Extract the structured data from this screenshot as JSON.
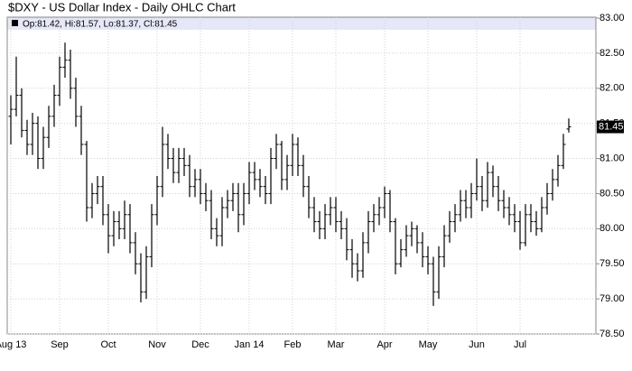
{
  "chart_data": {
    "type": "ohlc",
    "title": "$DXY - US Dollar Index - Daily OHLC Chart",
    "ohlc_text": "Op:81.42, Hi:81.57, Lo:81.37, Cl:81.45",
    "color": "#000000",
    "grid": true,
    "categories": [
      "Aug 13",
      null,
      null,
      null,
      null,
      null,
      null,
      null,
      null,
      "Sep",
      null,
      null,
      null,
      null,
      null,
      null,
      null,
      null,
      "Oct",
      null,
      null,
      null,
      null,
      null,
      null,
      null,
      null,
      "Nov",
      null,
      null,
      null,
      null,
      null,
      null,
      null,
      "Dec",
      null,
      null,
      null,
      null,
      null,
      null,
      null,
      null,
      "Jan 14",
      null,
      null,
      null,
      null,
      null,
      null,
      null,
      "Feb",
      null,
      null,
      null,
      null,
      null,
      null,
      null,
      "Mar",
      null,
      null,
      null,
      null,
      null,
      null,
      null,
      null,
      "Apr",
      null,
      null,
      null,
      null,
      null,
      null,
      null,
      "May",
      null,
      null,
      null,
      null,
      null,
      null,
      null,
      null,
      "Jun",
      null,
      null,
      null,
      null,
      null,
      null,
      null,
      "Jul",
      null,
      null,
      null,
      null,
      null,
      null,
      null,
      null,
      null
    ],
    "open": [
      81.6,
      81.7,
      81.9,
      81.4,
      81.2,
      81.5,
      81.0,
      81.3,
      81.6,
      81.9,
      82.3,
      82.4,
      82.0,
      81.6,
      81.2,
      80.3,
      80.5,
      80.6,
      80.2,
      79.9,
      80.1,
      80.0,
      80.2,
      79.8,
      79.5,
      79.1,
      79.6,
      80.2,
      80.6,
      81.2,
      81.0,
      80.8,
      81.0,
      80.9,
      80.6,
      80.7,
      80.5,
      80.4,
      80.0,
      79.9,
      80.3,
      80.4,
      80.5,
      80.2,
      80.5,
      80.8,
      80.7,
      80.6,
      80.5,
      81.0,
      81.2,
      80.7,
      80.9,
      81.2,
      80.9,
      80.6,
      80.3,
      80.1,
      80.0,
      80.2,
      80.3,
      80.1,
      80.0,
      79.7,
      79.5,
      79.4,
      79.8,
      80.1,
      80.2,
      80.3,
      80.5,
      80.1,
      79.5,
      79.7,
      79.9,
      80.0,
      79.8,
      79.6,
      79.5,
      79.1,
      79.6,
      79.9,
      80.1,
      80.2,
      80.4,
      80.3,
      80.5,
      80.6,
      80.4,
      80.8,
      80.6,
      80.4,
      80.3,
      80.2,
      80.1,
      79.8,
      80.2,
      80.1,
      80.0,
      80.3,
      80.5,
      80.7,
      80.9,
      81.42
    ],
    "high": [
      81.9,
      82.45,
      82.0,
      81.55,
      81.65,
      81.6,
      81.45,
      81.75,
      82.05,
      82.45,
      82.65,
      82.55,
      82.15,
      81.75,
      81.25,
      80.65,
      80.75,
      80.75,
      80.35,
      80.25,
      80.25,
      80.4,
      80.35,
      79.95,
      79.65,
      79.75,
      80.35,
      80.75,
      81.45,
      81.35,
      81.15,
      81.15,
      81.15,
      81.05,
      80.85,
      80.85,
      80.65,
      80.55,
      80.15,
      80.45,
      80.55,
      80.65,
      80.65,
      80.65,
      80.95,
      80.95,
      80.85,
      80.75,
      81.15,
      81.35,
      81.25,
      81.05,
      81.35,
      81.3,
      81.05,
      80.75,
      80.45,
      80.25,
      80.35,
      80.45,
      80.45,
      80.25,
      80.15,
      79.85,
      79.65,
      79.95,
      80.25,
      80.35,
      80.45,
      80.6,
      80.55,
      80.15,
      79.85,
      80.05,
      80.1,
      80.05,
      79.95,
      79.75,
      79.6,
      79.75,
      80.05,
      80.25,
      80.35,
      80.55,
      80.55,
      80.65,
      81.0,
      80.75,
      80.95,
      80.9,
      80.75,
      80.55,
      80.45,
      80.35,
      80.25,
      80.35,
      80.35,
      80.25,
      80.45,
      80.65,
      80.85,
      81.05,
      81.35,
      81.57
    ],
    "low": [
      81.2,
      81.6,
      81.3,
      81.05,
      81.05,
      80.85,
      80.85,
      81.15,
      81.45,
      81.75,
      82.15,
      81.85,
      81.45,
      81.05,
      80.1,
      80.15,
      80.35,
      80.05,
      79.65,
      79.75,
      79.85,
      79.85,
      79.65,
      79.35,
      78.95,
      79.0,
      79.45,
      80.05,
      80.45,
      80.85,
      80.65,
      80.65,
      80.75,
      80.45,
      80.45,
      80.35,
      80.25,
      79.85,
      79.75,
      79.75,
      80.15,
      80.25,
      79.95,
      80.05,
      80.35,
      80.55,
      80.45,
      80.35,
      80.35,
      80.85,
      80.55,
      80.55,
      80.75,
      80.75,
      80.45,
      80.15,
      79.95,
      79.85,
      79.85,
      80.05,
      79.95,
      79.85,
      79.55,
      79.3,
      79.25,
      79.3,
      79.65,
      79.95,
      80.05,
      80.15,
      79.95,
      79.35,
      79.45,
      79.6,
      79.75,
      79.65,
      79.45,
      79.35,
      78.9,
      79.0,
      79.45,
      79.8,
      79.95,
      80.1,
      80.15,
      80.15,
      80.4,
      80.25,
      80.3,
      80.45,
      80.25,
      80.15,
      80.05,
      79.95,
      79.7,
      79.75,
      79.95,
      79.9,
      79.95,
      80.2,
      80.4,
      80.6,
      80.85,
      81.37
    ],
    "close": [
      81.7,
      81.9,
      81.4,
      81.2,
      81.5,
      81.0,
      81.3,
      81.6,
      81.9,
      82.3,
      82.4,
      82.0,
      81.6,
      81.2,
      80.3,
      80.5,
      80.6,
      80.2,
      79.9,
      80.1,
      80.0,
      80.2,
      79.8,
      79.5,
      79.1,
      79.6,
      80.2,
      80.6,
      81.2,
      81.0,
      80.8,
      81.0,
      80.9,
      80.6,
      80.7,
      80.5,
      80.4,
      80.0,
      79.9,
      80.3,
      80.4,
      80.5,
      80.2,
      80.5,
      80.8,
      80.7,
      80.6,
      80.5,
      81.0,
      81.2,
      80.7,
      80.9,
      81.2,
      80.9,
      80.6,
      80.3,
      80.1,
      80.0,
      80.2,
      80.3,
      80.1,
      80.0,
      79.7,
      79.5,
      79.4,
      79.8,
      80.1,
      80.2,
      80.3,
      80.5,
      80.1,
      79.5,
      79.7,
      79.9,
      80.0,
      79.8,
      79.6,
      79.5,
      79.1,
      79.6,
      79.9,
      80.1,
      80.2,
      80.4,
      80.3,
      80.5,
      80.6,
      80.4,
      80.8,
      80.6,
      80.4,
      80.3,
      80.2,
      80.1,
      79.8,
      80.2,
      80.1,
      80.0,
      80.3,
      80.5,
      80.7,
      80.9,
      81.2,
      81.45
    ],
    "ylim": [
      78.5,
      83
    ],
    "yticks": [
      {
        "value": 78.5,
        "label": "78.50"
      },
      {
        "value": 79,
        "label": "79.00"
      },
      {
        "value": 79.5,
        "label": "79.50"
      },
      {
        "value": 80,
        "label": "80.00"
      },
      {
        "value": 80.5,
        "label": "80.50"
      },
      {
        "value": 81,
        "label": "81.00"
      },
      {
        "value": 81.5,
        "label": "81.50"
      },
      {
        "value": 82,
        "label": "82.00"
      },
      {
        "value": 82.5,
        "label": "82.50"
      },
      {
        "value": 83,
        "label": "83.00"
      }
    ]
  }
}
